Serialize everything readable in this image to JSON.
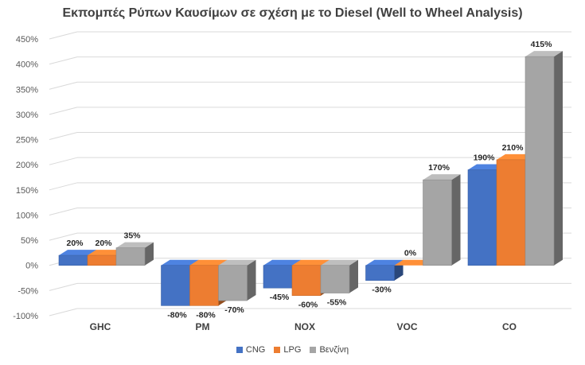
{
  "chart_data": {
    "type": "bar",
    "title": "Εκπομπές Ρύπων Καυσίμων σε σχέση με το Diesel (Well to Wheel Analysis)",
    "categories": [
      "GHC",
      "PM",
      "NOX",
      "VOC",
      "CO"
    ],
    "series": [
      {
        "name": "CNG",
        "values": [
          20,
          -80,
          -45,
          -30,
          190
        ],
        "color": "#4472C4",
        "labels": [
          "20%",
          "-80%",
          "-45%",
          "-30%",
          "190%"
        ]
      },
      {
        "name": "LPG",
        "values": [
          20,
          -80,
          -60,
          0,
          210
        ],
        "color": "#ED7D31",
        "labels": [
          "20%",
          "-80%",
          "-60%",
          "0%",
          "210%"
        ]
      },
      {
        "name": "Βενζίνη",
        "values": [
          35,
          -70,
          -55,
          170,
          415
        ],
        "color": "#A5A5A5",
        "labels": [
          "35%",
          "-70%",
          "-55%",
          "170%",
          "415%"
        ]
      }
    ],
    "y_ticks": [
      -100,
      -50,
      0,
      50,
      100,
      150,
      200,
      250,
      300,
      350,
      400,
      450
    ],
    "y_tick_labels": [
      "-100%",
      "-50%",
      "0%",
      "50%",
      "100%",
      "150%",
      "200%",
      "250%",
      "300%",
      "350%",
      "400%",
      "450%"
    ],
    "ylim": [
      -100,
      450
    ],
    "xlabel": "",
    "ylabel": "",
    "grid": true,
    "legend_position": "bottom",
    "style": "3d-clustered-column"
  }
}
